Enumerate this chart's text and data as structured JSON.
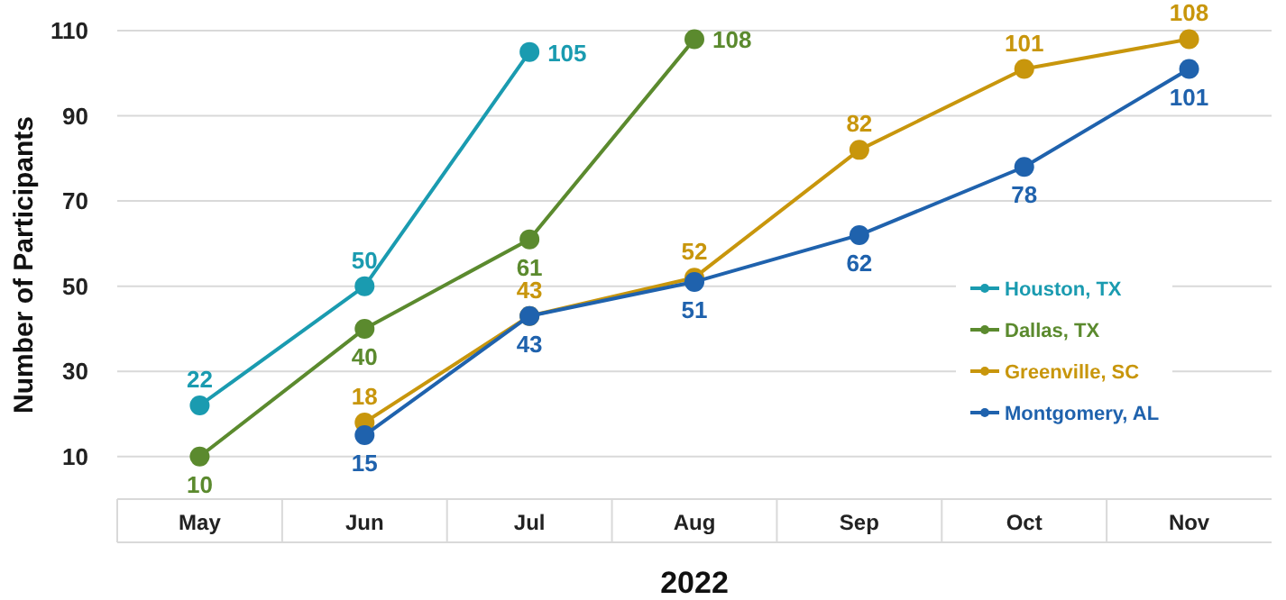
{
  "chart_data": {
    "type": "line",
    "xlabel": "2022",
    "ylabel": "Number of Participants",
    "categories": [
      "May",
      "Jun",
      "Jul",
      "Aug",
      "Sep",
      "Oct",
      "Nov"
    ],
    "series": [
      {
        "name": "Houston, TX",
        "color": "#1a9bb0",
        "values": [
          22,
          50,
          105,
          null,
          null,
          null,
          null
        ]
      },
      {
        "name": "Dallas, TX",
        "color": "#5b8a2e",
        "values": [
          10,
          40,
          61,
          108,
          null,
          null,
          null
        ]
      },
      {
        "name": "Greenville, SC",
        "color": "#c8960c",
        "values": [
          null,
          18,
          43,
          52,
          82,
          101,
          108
        ]
      },
      {
        "name": "Montgomery, AL",
        "color": "#1f62ad",
        "values": [
          null,
          15,
          43,
          51,
          62,
          78,
          101
        ]
      }
    ],
    "ylim": [
      0,
      110
    ],
    "yticks": [
      10,
      30,
      50,
      70,
      90,
      110
    ],
    "grid": "y",
    "legend": "right",
    "marker": "circle",
    "data_labels": true
  }
}
